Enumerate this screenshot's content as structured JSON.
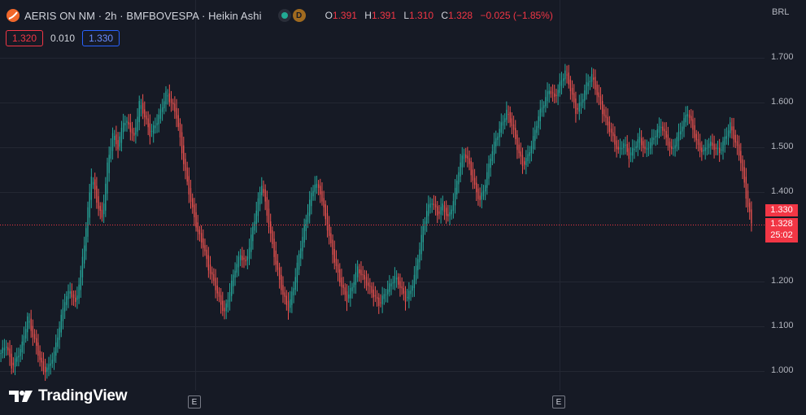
{
  "legend": {
    "symbol_title": "AERIS ON NM · 2h · BMFBOVESPA · Heikin Ashi",
    "badge": "D",
    "ohlc": [
      {
        "key": "O",
        "value": "1.391"
      },
      {
        "key": "H",
        "value": "1.391"
      },
      {
        "key": "L",
        "value": "1.310"
      },
      {
        "key": "C",
        "value": "1.328"
      }
    ],
    "change": "−0.025 (−1.85%)"
  },
  "trade": {
    "sell_price": "1.320",
    "spread": "0.010",
    "buy_price": "1.330"
  },
  "currency": "BRL",
  "price_scale": {
    "labels": [
      "1.700",
      "1.600",
      "1.500",
      "1.400",
      "1.200",
      "1.100",
      "1.000"
    ],
    "current": {
      "ask": "1.330",
      "last": "1.328",
      "countdown": "25:02"
    }
  },
  "event_markers": [
    "E",
    "E"
  ],
  "branding": {
    "name": "TradingView"
  },
  "colors": {
    "up": "#26a69a",
    "down": "#ef5350",
    "background": "#161a25",
    "grid": "#232733",
    "price_line": "#f23645"
  },
  "chart_data": {
    "type": "candlestick",
    "style": "Heikin Ashi",
    "x_label": "2h bars",
    "y_unit": "BRL",
    "ylim": [
      0.98,
      1.73
    ],
    "y_ticks": [
      1.0,
      1.1,
      1.2,
      1.4,
      1.5,
      1.6,
      1.7
    ],
    "grid": true,
    "price_line": 1.328,
    "closes": [
      1.04,
      1.06,
      1.01,
      1.03,
      1.06,
      1.12,
      1.08,
      1.04,
      1.0,
      1.01,
      1.04,
      1.1,
      1.16,
      1.18,
      1.15,
      1.22,
      1.32,
      1.44,
      1.38,
      1.34,
      1.46,
      1.53,
      1.5,
      1.56,
      1.55,
      1.52,
      1.6,
      1.57,
      1.53,
      1.55,
      1.58,
      1.62,
      1.6,
      1.57,
      1.49,
      1.42,
      1.36,
      1.31,
      1.28,
      1.23,
      1.2,
      1.16,
      1.13,
      1.18,
      1.23,
      1.26,
      1.24,
      1.3,
      1.36,
      1.42,
      1.35,
      1.28,
      1.22,
      1.17,
      1.14,
      1.19,
      1.26,
      1.32,
      1.38,
      1.42,
      1.4,
      1.34,
      1.28,
      1.23,
      1.19,
      1.16,
      1.19,
      1.23,
      1.21,
      1.19,
      1.17,
      1.15,
      1.17,
      1.19,
      1.21,
      1.19,
      1.16,
      1.18,
      1.23,
      1.3,
      1.36,
      1.38,
      1.35,
      1.37,
      1.34,
      1.38,
      1.45,
      1.49,
      1.46,
      1.41,
      1.38,
      1.42,
      1.48,
      1.52,
      1.55,
      1.58,
      1.55,
      1.5,
      1.46,
      1.48,
      1.52,
      1.57,
      1.6,
      1.63,
      1.61,
      1.64,
      1.67,
      1.63,
      1.58,
      1.6,
      1.64,
      1.66,
      1.62,
      1.58,
      1.55,
      1.52,
      1.49,
      1.51,
      1.48,
      1.5,
      1.52,
      1.49,
      1.51,
      1.53,
      1.55,
      1.52,
      1.49,
      1.52,
      1.55,
      1.58,
      1.54,
      1.5,
      1.49,
      1.51,
      1.5,
      1.49,
      1.52,
      1.55,
      1.51,
      1.47,
      1.39,
      1.33
    ]
  }
}
